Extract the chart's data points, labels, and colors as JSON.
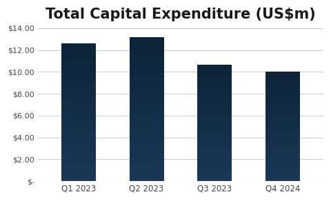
{
  "categories": [
    "Q1 2023",
    "Q2 2023",
    "Q3 2023",
    "Q4 2024"
  ],
  "values": [
    12.6,
    13.15,
    10.6,
    10.0
  ],
  "bar_color_top": "#0e2035",
  "bar_color_bottom": "#1b3a5c",
  "title": "Total Capital Expenditure (US$m)",
  "title_fontsize": 15,
  "ylim": [
    0,
    14
  ],
  "yticks": [
    0,
    2,
    4,
    6,
    8,
    10,
    12,
    14
  ],
  "ytick_labels": [
    "$-",
    "$2.00",
    "$4.00",
    "$6.00",
    "$8.00",
    "$10.00",
    "$12.00",
    "$14.00"
  ],
  "background_color": "#ffffff",
  "grid_color": "#cccccc",
  "bar_width": 0.5,
  "bar_dark": "#132337"
}
